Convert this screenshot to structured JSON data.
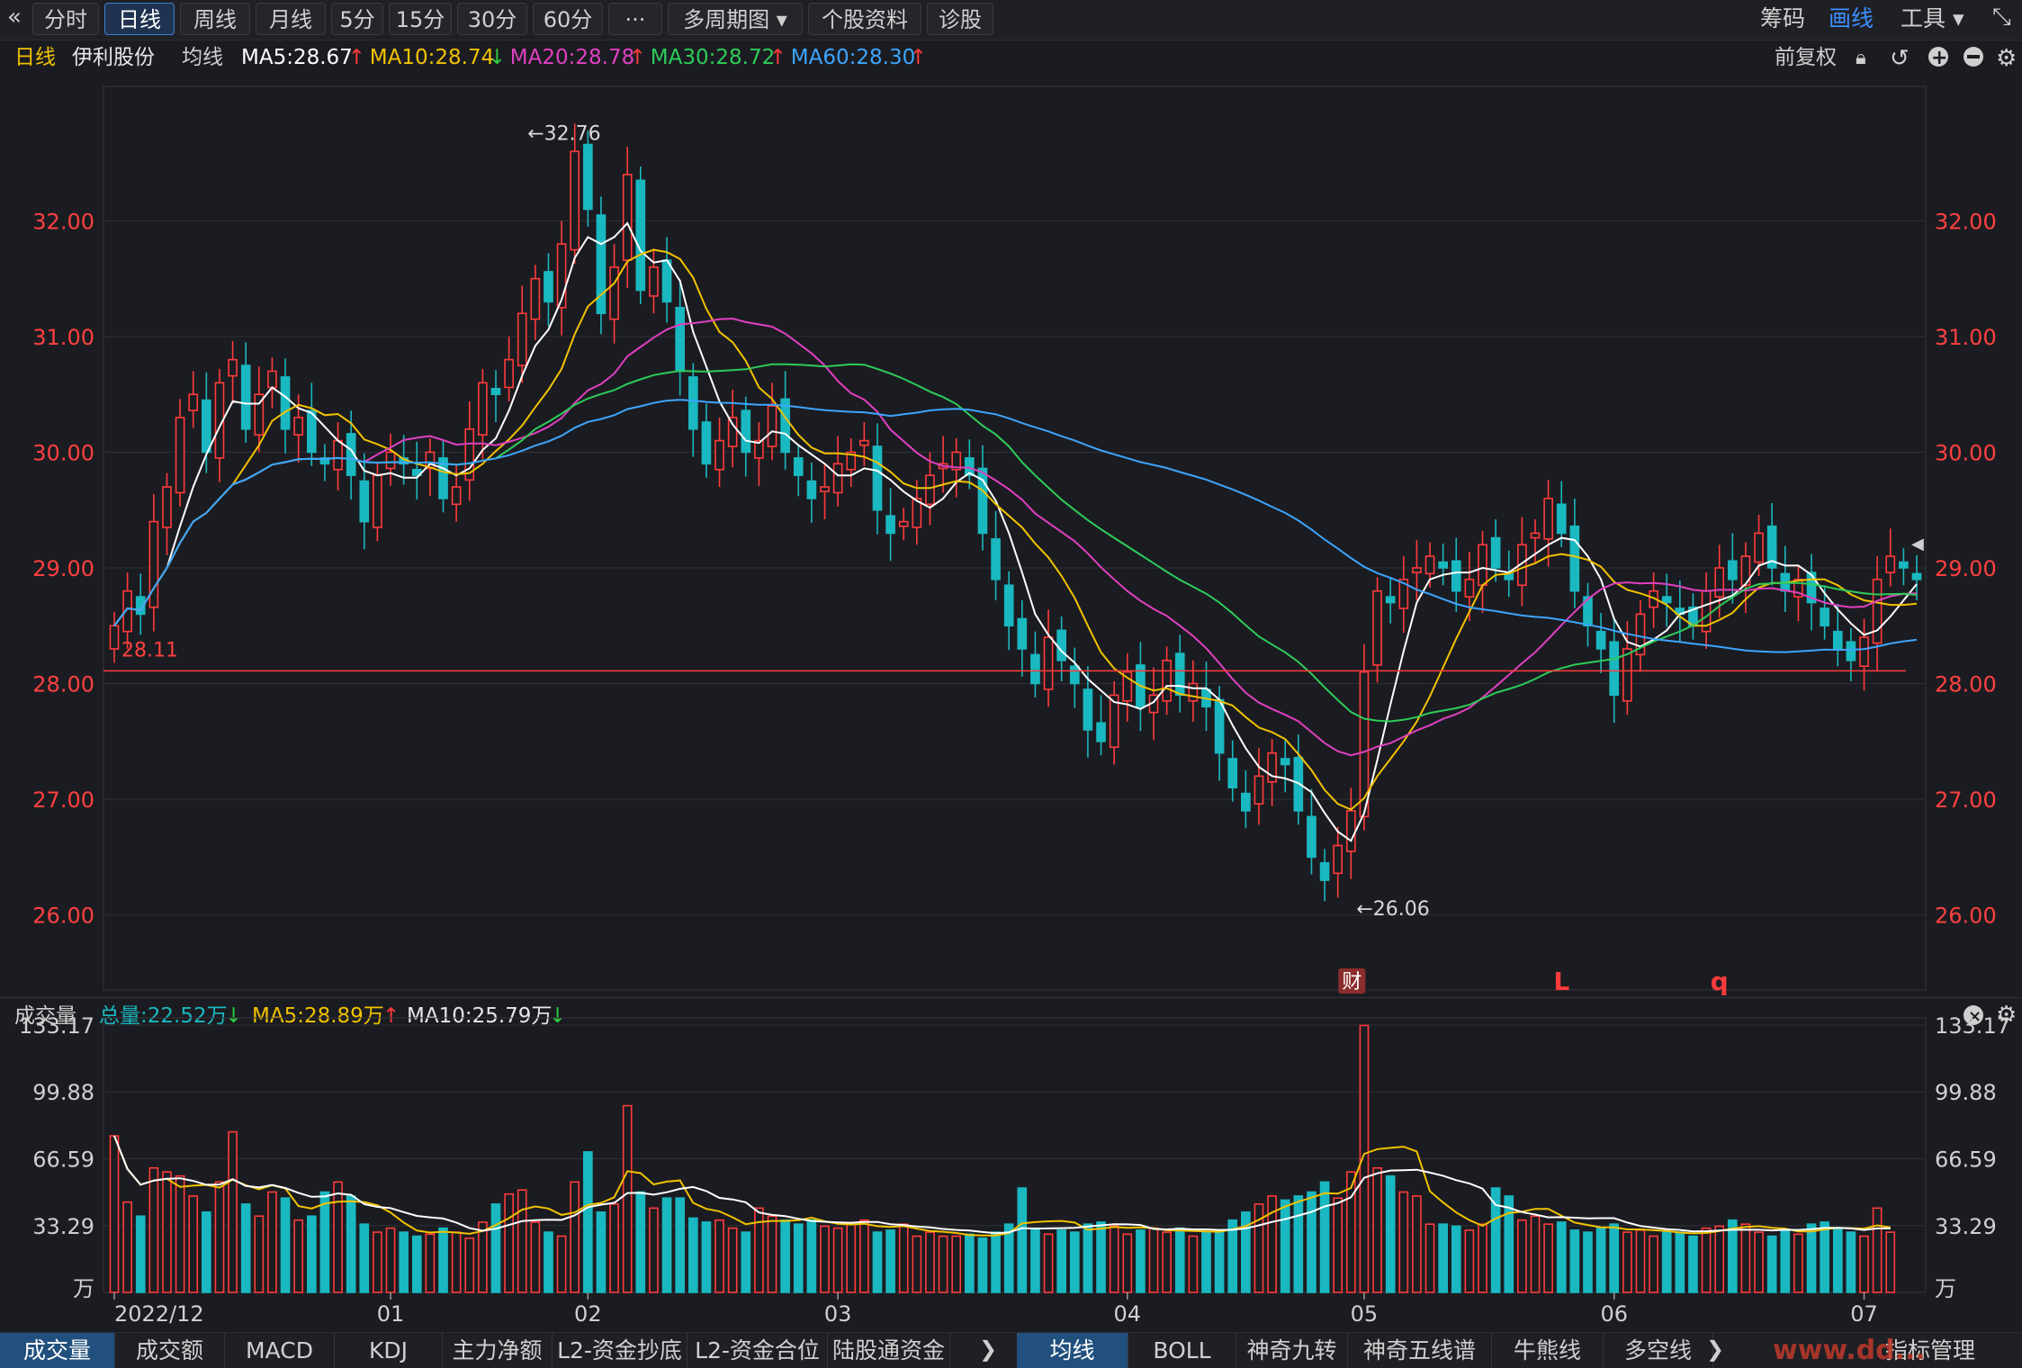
{
  "toolbar": {
    "back_icon": "«",
    "periods": [
      "分时",
      "日线",
      "周线",
      "月线",
      "5分",
      "15分",
      "30分",
      "60分",
      "···",
      "多周期图 ▾",
      "个股资料",
      "诊股"
    ],
    "active_period": "日线",
    "right": [
      "筹码",
      "画线",
      "工具 ▾"
    ],
    "collapse_icon": "⤡"
  },
  "info_bar": {
    "period": "日线",
    "stock_name": "伊利股份",
    "avg_label": "均线",
    "ma_items": [
      {
        "text": "MA5:28.67",
        "arrow": "↑",
        "color": "#ffffff",
        "arrow_color": "#ff3b3b"
      },
      {
        "text": "MA10:28.74",
        "arrow": "↓",
        "color": "#f2c200",
        "arrow_color": "#2ecc40"
      },
      {
        "text": "MA20:28.78",
        "arrow": "↑",
        "color": "#e040c0",
        "arrow_color": "#ff3b3b"
      },
      {
        "text": "MA30:28.72",
        "arrow": "↑",
        "color": "#2ecc5a",
        "arrow_color": "#ff3b3b"
      },
      {
        "text": "MA60:28.30",
        "arrow": "↑",
        "color": "#3da5ff",
        "arrow_color": "#ff3b3b"
      }
    ],
    "adjust_label": "前复权"
  },
  "volume_bar": {
    "label": "成交量",
    "total": "总量:22.52万",
    "total_arrow": "↓",
    "ma5": "MA5:28.89万",
    "ma5_arrow": "↑",
    "ma10": "MA10:25.79万",
    "ma10_arrow": "↓"
  },
  "bottom_tabs_left": [
    "成交量",
    "成交额",
    "MACD",
    "KDJ",
    "主力净额",
    "L2-资金抄底",
    "L2-资金合位",
    "陆股通资金"
  ],
  "bottom_tabs_right": [
    "均线",
    "BOLL",
    "神奇九转",
    "神奇五线谱",
    "牛熊线",
    "多空线"
  ],
  "bottom_right_label": "指标管理",
  "watermark": "www.dd...",
  "chart_data": {
    "type": "candlestick",
    "price_axis": {
      "ticks": [
        26.0,
        27.0,
        28.0,
        29.0,
        30.0,
        31.0,
        32.0
      ],
      "tick_labels": [
        "26.00",
        "27.00",
        "28.00",
        "29.00",
        "30.00",
        "31.00",
        "32.00"
      ],
      "range": [
        25.6,
        33.1
      ]
    },
    "volume_axis": {
      "ticks": [
        33.29,
        66.59,
        99.88,
        133.17
      ],
      "tick_labels": [
        "33.29",
        "66.59",
        "99.88",
        "133.17"
      ],
      "unit": "万",
      "range": [
        0,
        133.17
      ]
    },
    "x_labels": [
      {
        "label": "2022/12",
        "index": 0
      },
      {
        "label": "01",
        "index": 21
      },
      {
        "label": "02",
        "index": 36
      },
      {
        "label": "03",
        "index": 55
      },
      {
        "label": "04",
        "index": 77
      },
      {
        "label": "05",
        "index": 95
      },
      {
        "label": "06",
        "index": 114
      },
      {
        "label": "07",
        "index": 133
      }
    ],
    "annotations": [
      {
        "text": "32.76",
        "kind": "high",
        "index": 31,
        "value": 32.76
      },
      {
        "text": "26.06",
        "kind": "low",
        "index": 94,
        "value": 26.06
      },
      {
        "text": "28.11",
        "kind": "line",
        "value": 28.11
      },
      {
        "text": "财",
        "kind": "event",
        "index": 94
      },
      {
        "text": "L",
        "kind": "mark",
        "index": 110
      },
      {
        "text": "q",
        "kind": "mark",
        "index": 122
      }
    ],
    "ma_colors": {
      "MA5": "#ffffff",
      "MA10": "#f2c200",
      "MA20": "#e040c0",
      "MA30": "#2ecc5a",
      "MA60": "#3da5ff"
    },
    "up_color": "#ff3b3b",
    "down_color": "#1ab8c0",
    "closes": [
      28.5,
      28.8,
      28.6,
      29.4,
      29.7,
      30.3,
      30.5,
      30.0,
      30.6,
      30.8,
      30.2,
      30.5,
      30.7,
      30.2,
      30.3,
      30.0,
      29.9,
      30.1,
      29.8,
      29.4,
      29.8,
      30.0,
      29.9,
      29.8,
      30.0,
      29.6,
      29.7,
      30.2,
      30.6,
      30.5,
      30.8,
      31.2,
      31.5,
      31.3,
      31.8,
      32.6,
      32.1,
      31.2,
      31.6,
      32.4,
      31.4,
      31.6,
      31.3,
      30.7,
      30.2,
      29.9,
      30.1,
      30.3,
      30.0,
      30.1,
      30.4,
      30.0,
      29.8,
      29.6,
      29.7,
      29.9,
      30.0,
      30.1,
      29.5,
      29.3,
      29.4,
      29.6,
      29.8,
      29.9,
      30.0,
      29.8,
      29.3,
      28.9,
      28.5,
      28.3,
      28.0,
      28.4,
      28.2,
      28.0,
      27.6,
      27.5,
      27.9,
      28.1,
      27.8,
      27.9,
      28.2,
      27.9,
      28.0,
      27.8,
      27.4,
      27.1,
      26.9,
      27.2,
      27.4,
      27.3,
      26.9,
      26.5,
      26.3,
      26.6,
      26.9,
      28.1,
      28.8,
      28.7,
      28.9,
      29.0,
      29.1,
      29.0,
      28.8,
      28.9,
      29.2,
      29.0,
      28.9,
      29.2,
      29.3,
      29.6,
      29.3,
      28.8,
      28.5,
      28.3,
      27.9,
      28.3,
      28.6,
      28.8,
      28.7,
      28.6,
      28.5,
      28.8,
      29.0,
      28.9,
      29.1,
      29.3,
      29.0,
      28.8,
      28.9,
      28.7,
      28.5,
      28.3,
      28.2,
      28.4,
      28.9,
      29.1,
      29.0,
      28.9
    ],
    "volumes": [
      78,
      45,
      38,
      62,
      60,
      58,
      48,
      40,
      55,
      80,
      44,
      38,
      50,
      47,
      36,
      38,
      50,
      55,
      48,
      34,
      30,
      32,
      30,
      28,
      29,
      32,
      30,
      27,
      35,
      44,
      49,
      51,
      35,
      30,
      28,
      55,
      70,
      40,
      44,
      93,
      50,
      42,
      47,
      47,
      37,
      35,
      36,
      32,
      30,
      42,
      38,
      36,
      34,
      36,
      33,
      32,
      34,
      36,
      30,
      31,
      34,
      28,
      30,
      28,
      28,
      29,
      27,
      30,
      34,
      52,
      32,
      29,
      31,
      30,
      34,
      35,
      33,
      29,
      31,
      32,
      30,
      32,
      28,
      30,
      31,
      36,
      40,
      44,
      48,
      46,
      48,
      50,
      55,
      47,
      60,
      133,
      62,
      58,
      50,
      48,
      34,
      34,
      33,
      31,
      34,
      52,
      48,
      36,
      38,
      34,
      35,
      31,
      30,
      32,
      34,
      30,
      31,
      28,
      30,
      30,
      28,
      32,
      33,
      36,
      34,
      30,
      28,
      31,
      29,
      34,
      35,
      32,
      30,
      28,
      42,
      30
    ]
  }
}
